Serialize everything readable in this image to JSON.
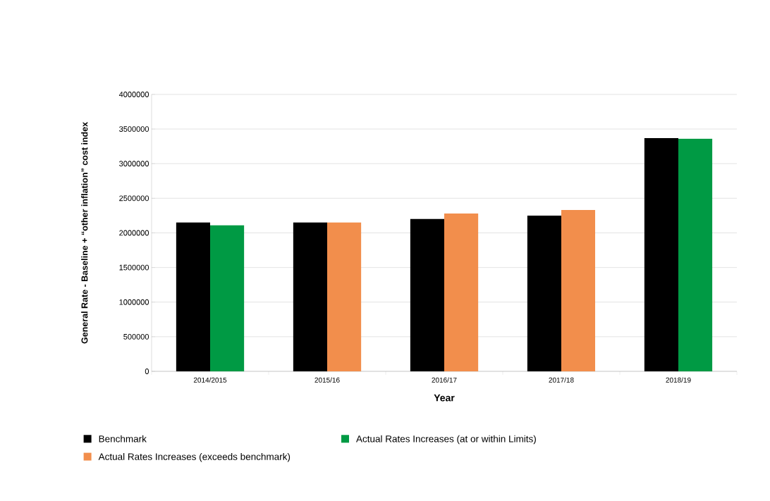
{
  "chart_data": {
    "type": "bar",
    "xlabel": "Year",
    "ylabel": "General Rate - Baseline + “other inflation” cost index",
    "categories": [
      "2014/2015",
      "2015/16",
      "2016/17",
      "2017/18",
      "2018/19"
    ],
    "series": [
      {
        "name": "Benchmark",
        "color": "#000000",
        "values": [
          2150000,
          2150000,
          2200000,
          2250000,
          3370000
        ]
      },
      {
        "name": "Actual Rates Increases (at or within Limits)",
        "color": "#009a44",
        "values": [
          2110000,
          null,
          null,
          null,
          3360000
        ]
      },
      {
        "name": "Actual Rates Increases (exceeds benchmark)",
        "color": "#f28e4c",
        "values": [
          null,
          2150000,
          2280000,
          2330000,
          null
        ]
      }
    ],
    "ylim": [
      0,
      4000000
    ],
    "yticks": [
      0,
      500000,
      1000000,
      1500000,
      2000000,
      2500000,
      3000000,
      3500000,
      4000000
    ],
    "grid": "y",
    "legend": "bottom"
  }
}
